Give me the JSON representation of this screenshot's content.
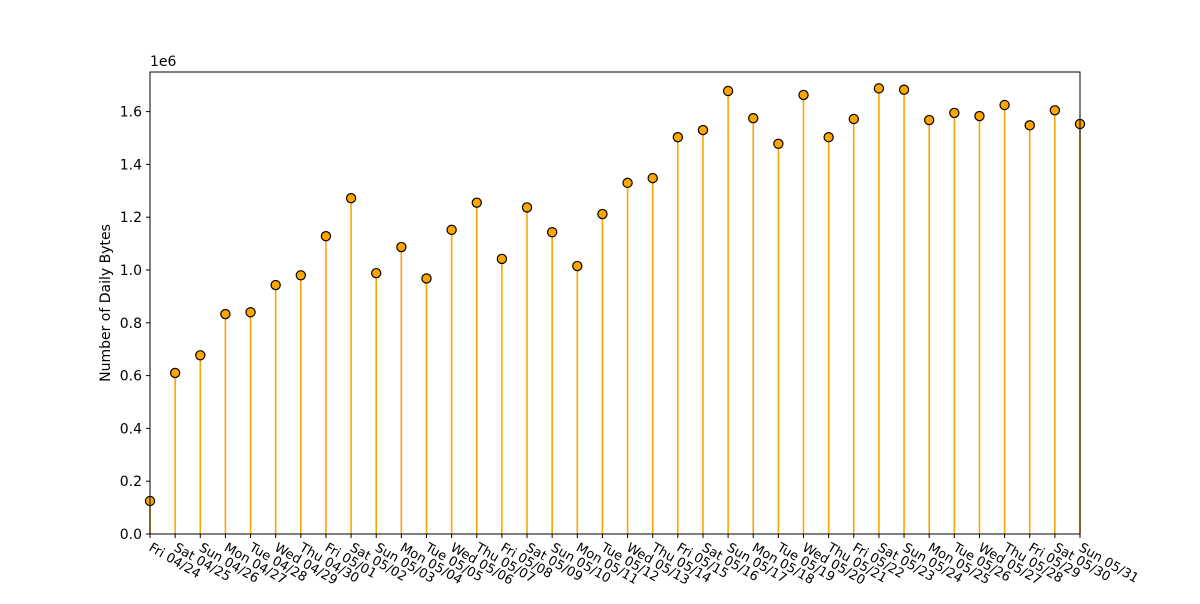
{
  "chart_data": {
    "type": "stem",
    "title": "",
    "xlabel": "",
    "ylabel": "Number of Daily Bytes",
    "y_offset_label": "1e6",
    "y_scale": 1000000,
    "ylim": [
      0,
      1750000
    ],
    "yticks": [
      0,
      200000,
      400000,
      600000,
      800000,
      1000000,
      1200000,
      1400000,
      1600000
    ],
    "ytick_labels": [
      "0.0",
      "0.2",
      "0.4",
      "0.6",
      "0.8",
      "1.0",
      "1.2",
      "1.4",
      "1.6"
    ],
    "grid": false,
    "legend": "none",
    "colors": {
      "stem": "#ffa500",
      "marker_fill": "#ffa500",
      "marker_edge": "#000000"
    },
    "categories": [
      "Fri 04/24",
      "Sat 04/25",
      "Sun 04/26",
      "Mon 04/27",
      "Tue 04/28",
      "Wed 04/29",
      "Thu 04/30",
      "Fri 05/01",
      "Sat 05/02",
      "Sun 05/03",
      "Mon 05/04",
      "Tue 05/05",
      "Wed 05/06",
      "Thu 05/07",
      "Fri 05/08",
      "Sat 05/09",
      "Sun 05/10",
      "Mon 05/11",
      "Tue 05/12",
      "Wed 05/13",
      "Thu 05/14",
      "Fri 05/15",
      "Sat 05/16",
      "Sun 05/17",
      "Mon 05/18",
      "Tue 05/19",
      "Wed 05/20",
      "Thu 05/21",
      "Fri 05/22",
      "Sat 05/23",
      "Sun 05/24",
      "Mon 05/25",
      "Tue 05/26",
      "Wed 05/27",
      "Thu 05/28",
      "Fri 05/29",
      "Sat 05/30",
      "Sun 05/31"
    ],
    "values": [
      125000,
      610000,
      677000,
      833000,
      840000,
      943000,
      980000,
      1128000,
      1272000,
      988000,
      1087000,
      968000,
      1152000,
      1255000,
      1042000,
      1237000,
      1143000,
      1015000,
      1212000,
      1330000,
      1348000,
      1503000,
      1530000,
      1678000,
      1575000,
      1478000,
      1663000,
      1503000,
      1572000,
      1688000,
      1683000,
      1568000,
      1595000,
      1583000,
      1625000,
      1548000,
      1605000,
      1553000
    ]
  }
}
